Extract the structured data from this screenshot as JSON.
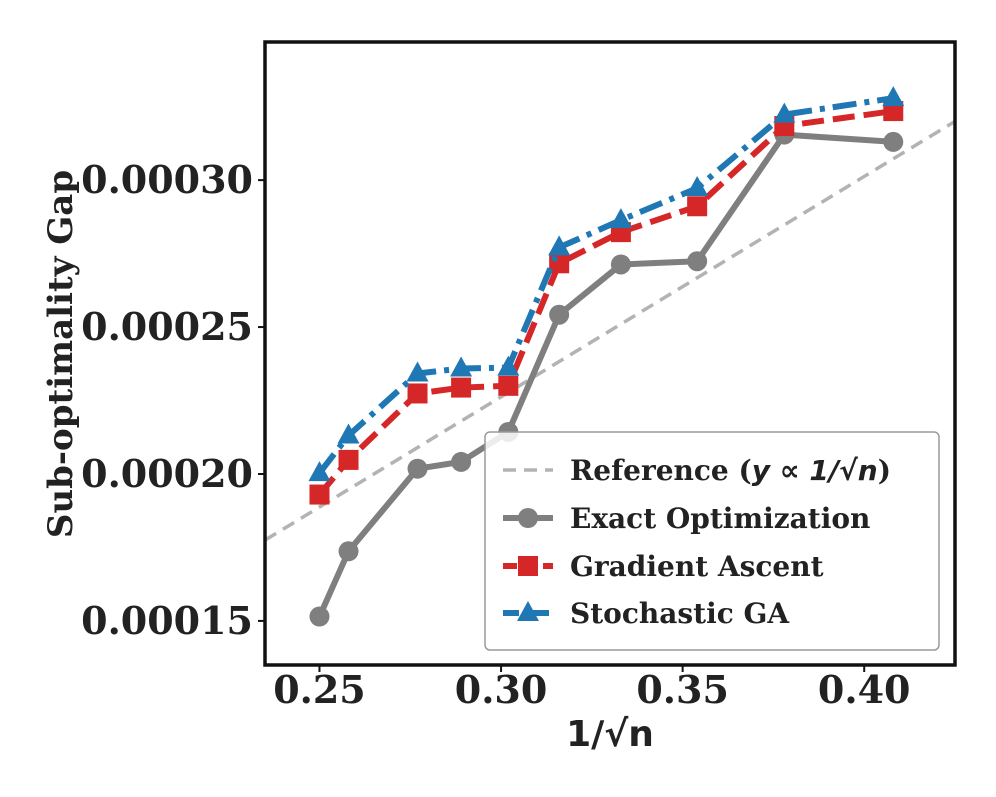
{
  "chart_data": {
    "type": "line",
    "title": "",
    "xlabel": "1/√n",
    "ylabel": "Sub-optimality Gap",
    "xlim": [
      0.235,
      0.425
    ],
    "ylim": [
      0.000135,
      0.000347
    ],
    "xticks": [
      0.25,
      0.3,
      0.35,
      0.4
    ],
    "xtick_labels": [
      "0.25",
      "0.30",
      "0.35",
      "0.40"
    ],
    "yticks": [
      0.00015,
      0.0002,
      0.00025,
      0.0003
    ],
    "ytick_labels": [
      "0.00015",
      "0.00020",
      "0.00025",
      "0.00030"
    ],
    "grid": false,
    "legend_position": "bottom-right",
    "reference": {
      "name": "Reference (y ∝ 1/√n)",
      "name_prefix": "Reference (",
      "name_math": "y ∝ 1/√n",
      "name_suffix": ")",
      "color": "#b3b3b3",
      "x": [
        0.235,
        0.425
      ],
      "y": [
        0.0001775,
        0.00032
      ]
    },
    "series": [
      {
        "name": "Exact Optimization",
        "color": "#7f7f7f",
        "marker": "circle",
        "style": "solid",
        "x": [
          0.25,
          0.258,
          0.277,
          0.289,
          0.302,
          0.316,
          0.333,
          0.354,
          0.378,
          0.408
        ],
        "y": [
          0.0001515,
          0.0001737,
          0.0002018,
          0.0002041,
          0.0002143,
          0.0002542,
          0.0002713,
          0.0002724,
          0.0003155,
          0.000313
        ]
      },
      {
        "name": "Gradient Ascent",
        "color": "#d62728",
        "marker": "square",
        "style": "dashed",
        "x": [
          0.25,
          0.258,
          0.277,
          0.289,
          0.302,
          0.316,
          0.333,
          0.354,
          0.378,
          0.408
        ],
        "y": [
          0.000193,
          0.0002048,
          0.0002274,
          0.0002294,
          0.00023,
          0.0002717,
          0.0002823,
          0.0002911,
          0.0003184,
          0.0003235
        ]
      },
      {
        "name": "Stochastic GA",
        "color": "#1f77b4",
        "marker": "triangle",
        "style": "dashdot",
        "x": [
          0.25,
          0.258,
          0.277,
          0.289,
          0.302,
          0.316,
          0.333,
          0.354,
          0.378,
          0.408
        ],
        "y": [
          0.0002003,
          0.0002131,
          0.0002342,
          0.0002359,
          0.0002362,
          0.0002771,
          0.0002864,
          0.0002973,
          0.0003223,
          0.0003279
        ]
      }
    ]
  }
}
